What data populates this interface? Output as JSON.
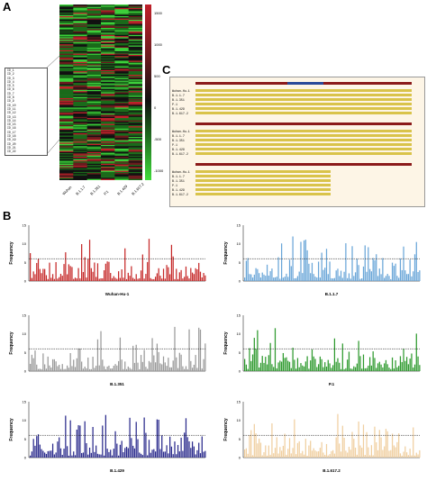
{
  "panels": {
    "a": "A",
    "b": "B",
    "c": "C"
  },
  "heatmap": {
    "columns": [
      "Wuhan",
      "B.1.1.7",
      "B.1.351",
      "P.1",
      "B.1.429",
      "B.1.617.2"
    ],
    "colorbar_ticks": [
      "1500",
      "1000",
      "500",
      "0",
      "-500",
      "-1000"
    ],
    "ids": [
      "ID_1",
      "ID_2",
      "ID_3",
      "ID_4",
      "ID_5",
      "ID_6",
      "ID_7",
      "ID_8",
      "ID_9",
      "ID_10",
      "ID_11",
      "ID_12",
      "ID_13",
      "ID_14",
      "ID_15",
      "ID_16",
      "ID_17",
      "ID_18",
      "ID_19",
      "ID_20",
      "ID_21",
      "ID_22"
    ]
  },
  "alignment": {
    "sequence_names": [
      "Wuhan-Hu-1",
      "B.1.1.7",
      "B.1.351",
      "P.1",
      "B.1.429",
      "B.1.617.2"
    ]
  },
  "chart_data": [
    {
      "type": "bar",
      "xlabel": "Wuhan-Hu-1",
      "ylabel": "Frequency",
      "ylim": [
        0,
        15
      ],
      "threshold": 6,
      "color": "#c62a2a",
      "yticks": [
        "15",
        "10",
        "5",
        "0"
      ]
    },
    {
      "type": "bar",
      "xlabel": "B.1.1.7",
      "ylabel": "Frequency",
      "ylim": [
        0,
        15
      ],
      "threshold": 6,
      "color": "#6aa6d8",
      "yticks": [
        "15",
        "10",
        "5",
        "0"
      ]
    },
    {
      "type": "bar",
      "xlabel": "B.1.351",
      "ylabel": "Frequency",
      "ylim": [
        0,
        15
      ],
      "threshold": 6,
      "color": "#9a9a9a",
      "yticks": [
        "15",
        "10",
        "5",
        "0"
      ]
    },
    {
      "type": "bar",
      "xlabel": "P.1",
      "ylabel": "Frequency",
      "ylim": [
        0,
        15
      ],
      "threshold": 6,
      "color": "#2e9a2e",
      "yticks": [
        "15",
        "10",
        "5",
        "0"
      ]
    },
    {
      "type": "bar",
      "xlabel": "B.1.429",
      "ylabel": "Frequency",
      "ylim": [
        0,
        15
      ],
      "threshold": 6,
      "color": "#2a2a8c",
      "yticks": [
        "15",
        "10",
        "5",
        "0"
      ]
    },
    {
      "type": "bar",
      "xlabel": "B.1.617.2",
      "ylabel": "Frequency",
      "ylim": [
        0,
        15
      ],
      "threshold": 6,
      "color": "#f0cfa0",
      "yticks": [
        "15",
        "10",
        "5",
        "0"
      ]
    }
  ]
}
